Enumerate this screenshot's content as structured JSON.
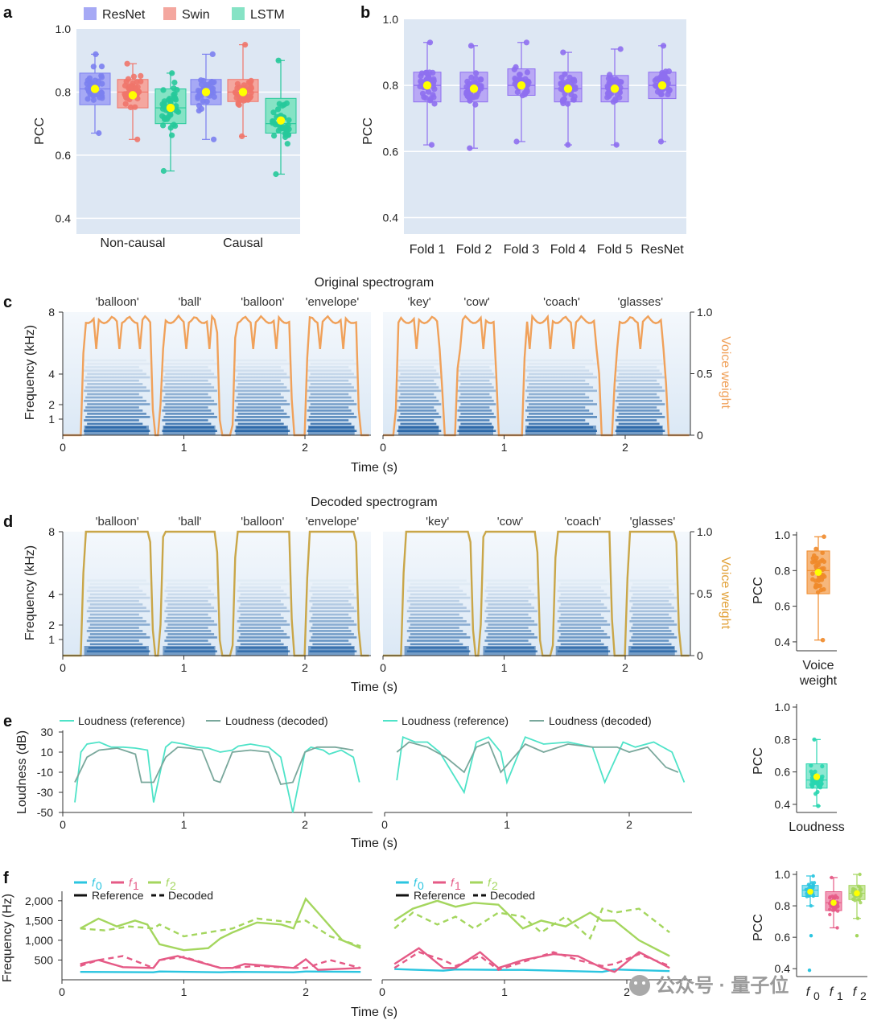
{
  "colors": {
    "ResNet": "#7b7ff0",
    "Swin": "#f0756a",
    "LSTM": "#26c99a",
    "fold": "#8e6ff0",
    "mean": "#ffff00",
    "panel_bg": "#dde7f3",
    "voice_orig": "#f0a15a",
    "voice_dec": "#c9a648",
    "loud_ref": "#4fe3c8",
    "loud_dec": "#7aa89c",
    "f0": "#2bc5e0",
    "f1": "#e55a86",
    "f2": "#a4d65e",
    "spec_dark": "#1f5fa3",
    "spec_light": "#eaf2fa"
  },
  "watermark": "公众号 · 量子位",
  "panel_a": {
    "label": "a",
    "ylabel": "PCC",
    "legend": [
      "ResNet",
      "Swin",
      "LSTM"
    ],
    "groups": [
      "Non-causal",
      "Causal"
    ],
    "yticks": [
      "0.4",
      "0.6",
      "0.8",
      "1.0"
    ]
  },
  "panel_b": {
    "label": "b",
    "ylabel": "PCC",
    "categories": [
      "Fold 1",
      "Fold 2",
      "Fold 3",
      "Fold 4",
      "Fold 5",
      "ResNet"
    ],
    "yticks": [
      "0.4",
      "0.6",
      "0.8",
      "1.0"
    ]
  },
  "panel_c": {
    "label": "c",
    "title": "Original spectrogram",
    "ylabel": "Frequency (kHz)",
    "xlabel": "Time (s)",
    "y2label": "Voice weight",
    "yticks": [
      "1",
      "2",
      "4",
      "8"
    ],
    "y2ticks": [
      "0",
      "0.5",
      "1.0"
    ],
    "xticks": [
      "0",
      "1",
      "2"
    ],
    "words_left": [
      "'balloon'",
      "'ball'",
      "'balloon'",
      "'envelope'"
    ],
    "words_right": [
      "'key'",
      "'cow'",
      "'coach'",
      "'glasses'"
    ]
  },
  "panel_d": {
    "label": "d",
    "title": "Decoded spectrogram",
    "ylabel": "Frequency (kHz)",
    "xlabel": "Time (s)",
    "y2label": "Voice weight",
    "yticks": [
      "1",
      "2",
      "4",
      "8"
    ],
    "y2ticks": [
      "0",
      "0.5",
      "1.0"
    ],
    "xticks": [
      "0",
      "1",
      "2"
    ],
    "words_left": [
      "'balloon'",
      "'ball'",
      "'balloon'",
      "'envelope'"
    ],
    "words_right": [
      "'key'",
      "'cow'",
      "'coach'",
      "'glasses'"
    ],
    "box_ylabel": "PCC",
    "box_yticks": [
      "0.4",
      "0.6",
      "0.8",
      "1.0"
    ],
    "box_xlabel_1": "Voice",
    "box_xlabel_2": "weight"
  },
  "panel_e": {
    "label": "e",
    "ylabel": "Loudness (dB)",
    "xlabel": "Time (s)",
    "yticks": [
      "-50",
      "-30",
      "-10",
      "10",
      "30"
    ],
    "xticks": [
      "0",
      "1",
      "2"
    ],
    "legend": [
      "Loudness (reference)",
      "Loudness (decoded)"
    ],
    "box_ylabel": "PCC",
    "box_yticks": [
      "0.4",
      "0.6",
      "0.8",
      "1.0"
    ],
    "box_xlabel": "Loudness"
  },
  "panel_f": {
    "label": "f",
    "ylabel": "Frequency (Hz)",
    "xlabel": "Time (s)",
    "yticks": [
      "500",
      "1,000",
      "1,500",
      "2,000"
    ],
    "xticks": [
      "0",
      "1",
      "2"
    ],
    "legend": [
      "f",
      "f",
      "f"
    ],
    "legend_sub": [
      "0",
      "1",
      "2"
    ],
    "legend_style": [
      "Reference",
      "Decoded"
    ],
    "box_ylabel": "PCC",
    "box_yticks": [
      "0.4",
      "0.6",
      "0.8",
      "1.0"
    ]
  },
  "chart_data": [
    {
      "type": "box",
      "panel": "a",
      "ylabel": "PCC",
      "ylim": [
        0.35,
        1.0
      ],
      "categories": [
        "Non-causal",
        "Causal"
      ],
      "series": [
        {
          "name": "ResNet",
          "groups": [
            {
              "q1": 0.76,
              "median": 0.81,
              "q3": 0.86,
              "whisker_low": 0.67,
              "whisker_high": 0.92,
              "mean": 0.81
            },
            {
              "q1": 0.76,
              "median": 0.8,
              "q3": 0.84,
              "whisker_low": 0.65,
              "whisker_high": 0.92,
              "mean": 0.8
            }
          ]
        },
        {
          "name": "Swin",
          "groups": [
            {
              "q1": 0.75,
              "median": 0.8,
              "q3": 0.84,
              "whisker_low": 0.65,
              "whisker_high": 0.89,
              "mean": 0.79
            },
            {
              "q1": 0.77,
              "median": 0.8,
              "q3": 0.84,
              "whisker_low": 0.66,
              "whisker_high": 0.95,
              "mean": 0.8
            }
          ]
        },
        {
          "name": "LSTM",
          "groups": [
            {
              "q1": 0.7,
              "median": 0.75,
              "q3": 0.81,
              "whisker_low": 0.55,
              "whisker_high": 0.86,
              "mean": 0.75
            },
            {
              "q1": 0.67,
              "median": 0.7,
              "q3": 0.78,
              "whisker_low": 0.54,
              "whisker_high": 0.9,
              "mean": 0.71
            }
          ]
        }
      ]
    },
    {
      "type": "box",
      "panel": "b",
      "ylabel": "PCC",
      "ylim": [
        0.35,
        1.0
      ],
      "categories": [
        "Fold 1",
        "Fold 2",
        "Fold 3",
        "Fold 4",
        "Fold 5",
        "ResNet"
      ],
      "boxes": [
        {
          "q1": 0.75,
          "median": 0.8,
          "q3": 0.84,
          "whisker_low": 0.62,
          "whisker_high": 0.93,
          "mean": 0.8
        },
        {
          "q1": 0.75,
          "median": 0.79,
          "q3": 0.84,
          "whisker_low": 0.61,
          "whisker_high": 0.92,
          "mean": 0.79
        },
        {
          "q1": 0.77,
          "median": 0.8,
          "q3": 0.85,
          "whisker_low": 0.63,
          "whisker_high": 0.93,
          "mean": 0.8
        },
        {
          "q1": 0.75,
          "median": 0.79,
          "q3": 0.84,
          "whisker_low": 0.62,
          "whisker_high": 0.9,
          "mean": 0.79
        },
        {
          "q1": 0.75,
          "median": 0.79,
          "q3": 0.83,
          "whisker_low": 0.62,
          "whisker_high": 0.91,
          "mean": 0.79
        },
        {
          "q1": 0.76,
          "median": 0.8,
          "q3": 0.84,
          "whisker_low": 0.63,
          "whisker_high": 0.92,
          "mean": 0.8
        }
      ]
    },
    {
      "type": "heatmap",
      "panel": "c",
      "title": "Original spectrogram",
      "ylabel": "Frequency (kHz)",
      "y2label": "Voice weight",
      "xlabel": "Time (s)",
      "xlim": [
        0,
        2.55
      ],
      "ylim_khz": [
        0,
        8
      ],
      "ylim_voice": [
        0,
        1.0
      ],
      "segments_left": [
        {
          "word": "'balloon'",
          "start": 0.15,
          "end": 0.75
        },
        {
          "word": "'ball'",
          "start": 0.8,
          "end": 1.3
        },
        {
          "word": "'balloon'",
          "start": 1.4,
          "end": 1.9
        },
        {
          "word": "'envelope'",
          "start": 2.0,
          "end": 2.45
        }
      ],
      "segments_right": [
        {
          "word": "'key'",
          "start": 0.1,
          "end": 0.5
        },
        {
          "word": "'cow'",
          "start": 0.6,
          "end": 0.95
        },
        {
          "word": "'coach'",
          "start": 1.15,
          "end": 1.8
        },
        {
          "word": "'glasses'",
          "start": 1.9,
          "end": 2.35
        }
      ]
    },
    {
      "type": "heatmap",
      "panel": "d",
      "title": "Decoded spectrogram",
      "ylabel": "Frequency (kHz)",
      "y2label": "Voice weight",
      "xlabel": "Time (s)",
      "xlim": [
        0,
        2.55
      ],
      "ylim_khz": [
        0,
        8
      ],
      "ylim_voice": [
        0,
        1.0
      ],
      "box": {
        "ylabel": "PCC",
        "xlabel": "Voice weight",
        "ylim": [
          0.35,
          1.0
        ],
        "q1": 0.67,
        "median": 0.8,
        "q3": 0.91,
        "whisker_low": 0.41,
        "whisker_high": 0.99,
        "mean": 0.79
      }
    },
    {
      "type": "line",
      "panel": "e",
      "ylabel": "Loudness (dB)",
      "xlabel": "Time (s)",
      "ylim": [
        -50,
        30
      ],
      "xlim": [
        0,
        2.55
      ],
      "series": [
        {
          "name": "Loudness (reference)",
          "part": "left",
          "x": [
            0.1,
            0.15,
            0.2,
            0.3,
            0.4,
            0.5,
            0.6,
            0.7,
            0.75,
            0.85,
            0.9,
            1.0,
            1.1,
            1.2,
            1.3,
            1.4,
            1.45,
            1.55,
            1.7,
            1.8,
            1.9,
            2.0,
            2.05,
            2.15,
            2.2,
            2.3,
            2.4,
            2.45
          ],
          "y": [
            -40,
            10,
            18,
            20,
            15,
            15,
            14,
            12,
            -40,
            15,
            20,
            18,
            15,
            14,
            10,
            12,
            16,
            18,
            15,
            5,
            -50,
            10,
            15,
            12,
            8,
            12,
            5,
            -20
          ]
        },
        {
          "name": "Loudness (decoded)",
          "part": "left",
          "x": [
            0.1,
            0.2,
            0.3,
            0.45,
            0.6,
            0.65,
            0.75,
            0.85,
            0.95,
            1.05,
            1.15,
            1.25,
            1.3,
            1.4,
            1.55,
            1.7,
            1.8,
            1.9,
            2.0,
            2.1,
            2.25,
            2.4
          ],
          "y": [
            -20,
            5,
            12,
            14,
            8,
            -20,
            -20,
            5,
            15,
            14,
            12,
            -18,
            -20,
            10,
            12,
            10,
            -22,
            -20,
            10,
            15,
            15,
            12
          ]
        },
        {
          "name": "Loudness (reference)",
          "part": "right",
          "x": [
            0.1,
            0.15,
            0.25,
            0.35,
            0.45,
            0.5,
            0.65,
            0.75,
            0.85,
            0.95,
            1.0,
            1.15,
            1.3,
            1.5,
            1.7,
            1.8,
            1.95,
            2.05,
            2.2,
            2.35,
            2.45
          ],
          "y": [
            -18,
            25,
            20,
            20,
            10,
            0,
            -30,
            20,
            25,
            10,
            -20,
            25,
            18,
            20,
            15,
            -20,
            20,
            15,
            20,
            10,
            -20
          ]
        },
        {
          "name": "Loudness (decoded)",
          "part": "right",
          "x": [
            0.1,
            0.2,
            0.35,
            0.5,
            0.65,
            0.75,
            0.85,
            0.95,
            1.15,
            1.3,
            1.5,
            1.7,
            1.9,
            2.0,
            2.15,
            2.3,
            2.4
          ],
          "y": [
            10,
            20,
            15,
            5,
            -10,
            15,
            20,
            -10,
            18,
            10,
            18,
            15,
            15,
            10,
            15,
            -5,
            -10
          ]
        }
      ],
      "box": {
        "ylabel": "PCC",
        "xlabel": "Loudness",
        "ylim": [
          0.35,
          1.0
        ],
        "q1": 0.5,
        "median": 0.55,
        "q3": 0.65,
        "whisker_low": 0.39,
        "whisker_high": 0.8,
        "mean": 0.57
      }
    },
    {
      "type": "line",
      "panel": "f",
      "ylabel": "Frequency (Hz)",
      "xlabel": "Time (s)",
      "ylim": [
        0,
        2200
      ],
      "xlim": [
        0,
        2.55
      ],
      "series": [
        {
          "name": "f0",
          "style": "Reference",
          "part": "left",
          "x": [
            0.15,
            0.75,
            0.8,
            1.3,
            1.4,
            1.9,
            2.0,
            2.45
          ],
          "y": [
            200,
            190,
            210,
            190,
            200,
            190,
            210,
            200
          ]
        },
        {
          "name": "f1",
          "style": "Reference",
          "part": "left",
          "x": [
            0.15,
            0.3,
            0.5,
            0.75,
            0.8,
            0.95,
            1.3,
            1.4,
            1.5,
            1.9,
            2.0,
            2.1,
            2.45
          ],
          "y": [
            400,
            500,
            320,
            300,
            500,
            600,
            300,
            300,
            400,
            300,
            520,
            250,
            300
          ]
        },
        {
          "name": "f2",
          "style": "Reference",
          "part": "left",
          "x": [
            0.15,
            0.3,
            0.45,
            0.6,
            0.7,
            0.8,
            1.0,
            1.2,
            1.3,
            1.4,
            1.6,
            1.8,
            1.9,
            2.0,
            2.1,
            2.3,
            2.45
          ],
          "y": [
            1300,
            1550,
            1350,
            1500,
            1400,
            900,
            750,
            800,
            1050,
            1200,
            1450,
            1400,
            1300,
            2050,
            1700,
            1000,
            800
          ]
        },
        {
          "name": "f1",
          "style": "Decoded",
          "part": "left",
          "x": [
            0.15,
            0.3,
            0.5,
            0.75,
            0.8,
            1.0,
            1.3,
            1.4,
            1.6,
            1.9,
            2.0,
            2.2,
            2.45
          ],
          "y": [
            350,
            500,
            600,
            300,
            500,
            580,
            300,
            300,
            350,
            300,
            300,
            500,
            300
          ]
        },
        {
          "name": "f2",
          "style": "Decoded",
          "part": "left",
          "x": [
            0.15,
            0.35,
            0.55,
            0.75,
            0.8,
            1.0,
            1.2,
            1.3,
            1.4,
            1.6,
            1.9,
            2.0,
            2.2,
            2.45
          ],
          "y": [
            1300,
            1250,
            1350,
            1300,
            1400,
            1100,
            1200,
            1250,
            1300,
            1550,
            1450,
            1500,
            1100,
            850
          ]
        },
        {
          "name": "f0",
          "style": "Reference",
          "part": "right",
          "x": [
            0.1,
            0.5,
            0.6,
            0.95,
            1.15,
            1.8,
            1.9,
            2.35
          ],
          "y": [
            270,
            230,
            260,
            250,
            250,
            200,
            260,
            220
          ]
        },
        {
          "name": "f1",
          "style": "Reference",
          "part": "right",
          "x": [
            0.1,
            0.3,
            0.5,
            0.6,
            0.8,
            0.95,
            1.15,
            1.4,
            1.6,
            1.8,
            1.9,
            2.1,
            2.35
          ],
          "y": [
            400,
            800,
            300,
            300,
            700,
            300,
            500,
            650,
            600,
            300,
            200,
            700,
            300
          ]
        },
        {
          "name": "f2",
          "style": "Reference",
          "part": "right",
          "x": [
            0.1,
            0.25,
            0.45,
            0.6,
            0.75,
            0.95,
            1.15,
            1.3,
            1.5,
            1.7,
            1.8,
            1.9,
            2.1,
            2.35
          ],
          "y": [
            1500,
            1800,
            2000,
            1850,
            1950,
            1900,
            1300,
            1500,
            1350,
            1700,
            1500,
            1500,
            1000,
            600
          ]
        },
        {
          "name": "f1",
          "style": "Decoded",
          "part": "right",
          "x": [
            0.1,
            0.3,
            0.5,
            0.6,
            0.8,
            0.95,
            1.15,
            1.4,
            1.6,
            1.8,
            1.9,
            2.1,
            2.35
          ],
          "y": [
            300,
            700,
            500,
            350,
            600,
            250,
            450,
            700,
            500,
            350,
            400,
            650,
            350
          ]
        },
        {
          "name": "f2",
          "style": "Decoded",
          "part": "right",
          "x": [
            0.1,
            0.25,
            0.45,
            0.6,
            0.75,
            0.95,
            1.15,
            1.3,
            1.5,
            1.7,
            1.8,
            1.9,
            2.1,
            2.35
          ],
          "y": [
            1300,
            1700,
            1400,
            1600,
            1300,
            1700,
            1600,
            1200,
            1600,
            1050,
            1800,
            1700,
            1800,
            1200
          ]
        }
      ],
      "boxes": [
        {
          "name": "f0",
          "q1": 0.86,
          "median": 0.9,
          "q3": 0.93,
          "whisker_low": 0.8,
          "whisker_high": 0.99,
          "mean": 0.89
        },
        {
          "name": "f1",
          "q1": 0.77,
          "median": 0.82,
          "q3": 0.89,
          "whisker_low": 0.66,
          "whisker_high": 0.98,
          "mean": 0.82
        },
        {
          "name": "f2",
          "q1": 0.84,
          "median": 0.88,
          "q3": 0.93,
          "whisker_low": 0.72,
          "whisker_high": 1.0,
          "mean": 0.88
        }
      ]
    }
  ]
}
